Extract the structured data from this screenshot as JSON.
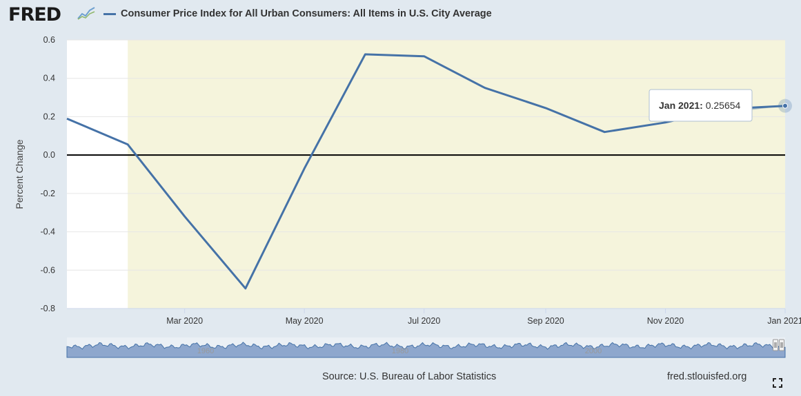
{
  "header": {
    "logo_text": "FRED",
    "logo_icon": "line-chart-icon"
  },
  "chart_data": {
    "type": "line",
    "title": "Consumer Price Index for All Urban Consumers: All Items in U.S. City Average",
    "ylabel": "Percent Change",
    "xlabel": "",
    "x": [
      "2020-01-01",
      "2020-02-01",
      "2020-03-01",
      "2020-04-01",
      "2020-05-01",
      "2020-06-01",
      "2020-07-01",
      "2020-08-01",
      "2020-09-01",
      "2020-10-01",
      "2020-11-01",
      "2020-12-01",
      "2021-01-01"
    ],
    "series": [
      {
        "name": "Consumer Price Index for All Urban Consumers: All Items in U.S. City Average",
        "color": "#4572a7",
        "values": [
          0.19,
          0.055,
          -0.32,
          -0.695,
          -0.07,
          0.525,
          0.515,
          0.35,
          0.245,
          0.12,
          0.17,
          0.24,
          0.25654
        ]
      }
    ],
    "ylim": [
      -0.8,
      0.6
    ],
    "yticks": [
      "0.6",
      "0.4",
      "0.2",
      "0.0",
      "-0.2",
      "-0.4",
      "-0.6",
      "-0.8"
    ],
    "xticks": [
      "Mar 2020",
      "May 2020",
      "Jul 2020",
      "Sep 2020",
      "Nov 2020",
      "Jan 2021"
    ],
    "recession_shading": {
      "start": "2020-02-01",
      "end": "2021-01-01",
      "color": "#f5f4dc"
    },
    "zero_line": true,
    "grid": "horizontal",
    "tooltip": {
      "label": "Jan 2021:",
      "value": "0.25654"
    },
    "navigator_ticks": [
      "1960",
      "1980",
      "2000"
    ]
  },
  "footer": {
    "source": "Source: U.S. Bureau of Labor Statistics",
    "site": "fred.stlouisfed.org",
    "fullscreen_icon": "fullscreen-icon"
  }
}
